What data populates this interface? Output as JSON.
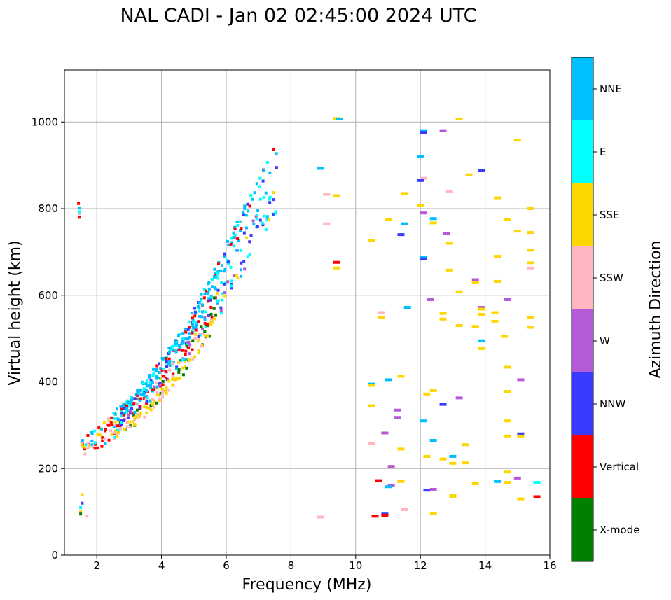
{
  "chart_data": {
    "type": "scatter",
    "title": "NAL CADI - Jan 02 02:45:00 2024 UTC",
    "xlabel": "Frequency (MHz)",
    "ylabel": "Virtual height (km)",
    "xlim": [
      1,
      16
    ],
    "ylim": [
      0,
      1120
    ],
    "x_ticks": [
      2,
      4,
      6,
      8,
      10,
      12,
      14,
      16
    ],
    "y_ticks": [
      0,
      200,
      400,
      600,
      800,
      1000
    ],
    "grid": true,
    "colorbar": {
      "label": "Azimuth Direction",
      "categories": [
        {
          "name": "X-mode",
          "color": "#008000"
        },
        {
          "name": "Vertical",
          "color": "#ff0000"
        },
        {
          "name": "NNW",
          "color": "#3a3aff"
        },
        {
          "name": "W",
          "color": "#b55ad6"
        },
        {
          "name": "SSW",
          "color": "#ffb6c1"
        },
        {
          "name": "SSE",
          "color": "#ffd700"
        },
        {
          "name": "E",
          "color": "#00ffff"
        },
        {
          "name": "NNE",
          "color": "#00bfff"
        }
      ]
    },
    "trace_nodes": [
      {
        "f": 1.5,
        "h": 235
      },
      {
        "f": 2.0,
        "h": 255
      },
      {
        "f": 2.5,
        "h": 275
      },
      {
        "f": 3.0,
        "h": 300
      },
      {
        "f": 3.5,
        "h": 330
      },
      {
        "f": 4.0,
        "h": 370
      },
      {
        "f": 4.5,
        "h": 410
      },
      {
        "f": 5.0,
        "h": 460
      },
      {
        "f": 5.5,
        "h": 520
      },
      {
        "f": 6.0,
        "h": 590
      },
      {
        "f": 6.5,
        "h": 660
      },
      {
        "f": 7.0,
        "h": 730
      },
      {
        "f": 7.5,
        "h": 790
      }
    ],
    "points": [
      {
        "f": 1.5,
        "h": 100,
        "c": "SSE"
      },
      {
        "f": 1.5,
        "h": 110,
        "c": "E"
      },
      {
        "f": 1.55,
        "h": 140,
        "c": "SSE"
      },
      {
        "f": 1.55,
        "h": 120,
        "c": "NNW"
      },
      {
        "f": 1.5,
        "h": 95,
        "c": "X-mode"
      },
      {
        "f": 1.7,
        "h": 90,
        "c": "SSW"
      },
      {
        "f": 9.4,
        "h": 1008,
        "c": "SSE"
      },
      {
        "f": 9.5,
        "h": 1007,
        "c": "NNE"
      },
      {
        "f": 8.9,
        "h": 893,
        "c": "NNE"
      },
      {
        "f": 9.1,
        "h": 833,
        "c": "SSW"
      },
      {
        "f": 9.4,
        "h": 830,
        "c": "SSE"
      },
      {
        "f": 9.1,
        "h": 765,
        "c": "SSW"
      },
      {
        "f": 9.4,
        "h": 676,
        "c": "Vertical"
      },
      {
        "f": 9.4,
        "h": 663,
        "c": "SSE"
      },
      {
        "f": 8.9,
        "h": 88,
        "c": "SSW"
      },
      {
        "f": 12.1,
        "h": 980,
        "c": "NNE"
      },
      {
        "f": 12.1,
        "h": 976,
        "c": "NNW"
      },
      {
        "f": 12.7,
        "h": 980,
        "c": "W"
      },
      {
        "f": 13.2,
        "h": 1007,
        "c": "SSE"
      },
      {
        "f": 12.0,
        "h": 920,
        "c": "NNE"
      },
      {
        "f": 12.1,
        "h": 870,
        "c": "SSW"
      },
      {
        "f": 12.0,
        "h": 865,
        "c": "NNW"
      },
      {
        "f": 12.9,
        "h": 840,
        "c": "SSW"
      },
      {
        "f": 13.5,
        "h": 878,
        "c": "SSE"
      },
      {
        "f": 13.9,
        "h": 888,
        "c": "NNW"
      },
      {
        "f": 15.0,
        "h": 958,
        "c": "SSE"
      },
      {
        "f": 14.4,
        "h": 825,
        "c": "SSE"
      },
      {
        "f": 11.5,
        "h": 835,
        "c": "SSE"
      },
      {
        "f": 12.0,
        "h": 808,
        "c": "SSE"
      },
      {
        "f": 12.1,
        "h": 790,
        "c": "W"
      },
      {
        "f": 12.4,
        "h": 777,
        "c": "NNE"
      },
      {
        "f": 12.4,
        "h": 767,
        "c": "SSE"
      },
      {
        "f": 11.0,
        "h": 775,
        "c": "SSE"
      },
      {
        "f": 11.5,
        "h": 765,
        "c": "NNE"
      },
      {
        "f": 11.4,
        "h": 740,
        "c": "NNW"
      },
      {
        "f": 12.8,
        "h": 743,
        "c": "W"
      },
      {
        "f": 10.5,
        "h": 727,
        "c": "SSE"
      },
      {
        "f": 12.9,
        "h": 720,
        "c": "SSE"
      },
      {
        "f": 14.7,
        "h": 775,
        "c": "SSE"
      },
      {
        "f": 15.0,
        "h": 748,
        "c": "SSE"
      },
      {
        "f": 15.4,
        "h": 800,
        "c": "SSE"
      },
      {
        "f": 15.4,
        "h": 745,
        "c": "SSE"
      },
      {
        "f": 15.4,
        "h": 704,
        "c": "SSE"
      },
      {
        "f": 15.4,
        "h": 675,
        "c": "SSE"
      },
      {
        "f": 15.4,
        "h": 663,
        "c": "SSW"
      },
      {
        "f": 12.1,
        "h": 688,
        "c": "NNE"
      },
      {
        "f": 12.1,
        "h": 684,
        "c": "NNW"
      },
      {
        "f": 14.4,
        "h": 690,
        "c": "SSE"
      },
      {
        "f": 12.9,
        "h": 658,
        "c": "SSE"
      },
      {
        "f": 13.7,
        "h": 636,
        "c": "W"
      },
      {
        "f": 13.7,
        "h": 630,
        "c": "SSE"
      },
      {
        "f": 14.4,
        "h": 632,
        "c": "SSE"
      },
      {
        "f": 13.2,
        "h": 608,
        "c": "SSE"
      },
      {
        "f": 12.3,
        "h": 590,
        "c": "W"
      },
      {
        "f": 14.7,
        "h": 590,
        "c": "W"
      },
      {
        "f": 11.6,
        "h": 572,
        "c": "NNE"
      },
      {
        "f": 13.9,
        "h": 572,
        "c": "W"
      },
      {
        "f": 13.9,
        "h": 568,
        "c": "SSE"
      },
      {
        "f": 12.7,
        "h": 558,
        "c": "SSE"
      },
      {
        "f": 12.7,
        "h": 545,
        "c": "SSE"
      },
      {
        "f": 10.8,
        "h": 560,
        "c": "SSW"
      },
      {
        "f": 10.8,
        "h": 548,
        "c": "SSE"
      },
      {
        "f": 13.9,
        "h": 556,
        "c": "SSE"
      },
      {
        "f": 14.3,
        "h": 560,
        "c": "SSE"
      },
      {
        "f": 14.3,
        "h": 540,
        "c": "SSE"
      },
      {
        "f": 13.2,
        "h": 530,
        "c": "SSE"
      },
      {
        "f": 13.7,
        "h": 528,
        "c": "SSE"
      },
      {
        "f": 15.4,
        "h": 548,
        "c": "SSE"
      },
      {
        "f": 15.4,
        "h": 526,
        "c": "SSE"
      },
      {
        "f": 14.6,
        "h": 505,
        "c": "SSE"
      },
      {
        "f": 13.9,
        "h": 495,
        "c": "NNE"
      },
      {
        "f": 13.9,
        "h": 477,
        "c": "SSE"
      },
      {
        "f": 14.7,
        "h": 434,
        "c": "SSE"
      },
      {
        "f": 11.4,
        "h": 413,
        "c": "SSE"
      },
      {
        "f": 10.5,
        "h": 395,
        "c": "NNE"
      },
      {
        "f": 10.5,
        "h": 392,
        "c": "SSE"
      },
      {
        "f": 11.0,
        "h": 405,
        "c": "NNE"
      },
      {
        "f": 15.1,
        "h": 405,
        "c": "W"
      },
      {
        "f": 12.4,
        "h": 380,
        "c": "SSE"
      },
      {
        "f": 12.2,
        "h": 372,
        "c": "SSE"
      },
      {
        "f": 14.7,
        "h": 378,
        "c": "SSE"
      },
      {
        "f": 13.2,
        "h": 363,
        "c": "W"
      },
      {
        "f": 12.7,
        "h": 348,
        "c": "NNW"
      },
      {
        "f": 10.5,
        "h": 345,
        "c": "SSE"
      },
      {
        "f": 11.3,
        "h": 335,
        "c": "W"
      },
      {
        "f": 11.3,
        "h": 318,
        "c": "W"
      },
      {
        "f": 12.1,
        "h": 310,
        "c": "NNE"
      },
      {
        "f": 14.7,
        "h": 310,
        "c": "SSE"
      },
      {
        "f": 10.9,
        "h": 282,
        "c": "W"
      },
      {
        "f": 15.1,
        "h": 280,
        "c": "NNW"
      },
      {
        "f": 15.1,
        "h": 275,
        "c": "SSE"
      },
      {
        "f": 14.7,
        "h": 275,
        "c": "SSE"
      },
      {
        "f": 12.4,
        "h": 265,
        "c": "NNE"
      },
      {
        "f": 10.5,
        "h": 258,
        "c": "SSW"
      },
      {
        "f": 13.4,
        "h": 255,
        "c": "SSE"
      },
      {
        "f": 11.4,
        "h": 245,
        "c": "SSE"
      },
      {
        "f": 12.2,
        "h": 228,
        "c": "SSE"
      },
      {
        "f": 13.0,
        "h": 228,
        "c": "NNE"
      },
      {
        "f": 12.7,
        "h": 222,
        "c": "SSE"
      },
      {
        "f": 13.0,
        "h": 212,
        "c": "SSE"
      },
      {
        "f": 13.4,
        "h": 213,
        "c": "SSE"
      },
      {
        "f": 11.1,
        "h": 205,
        "c": "W"
      },
      {
        "f": 14.7,
        "h": 192,
        "c": "SSE"
      },
      {
        "f": 13.7,
        "h": 165,
        "c": "SSE"
      },
      {
        "f": 14.4,
        "h": 170,
        "c": "NNE"
      },
      {
        "f": 14.7,
        "h": 168,
        "c": "SSE"
      },
      {
        "f": 15.0,
        "h": 178,
        "c": "W"
      },
      {
        "f": 15.6,
        "h": 168,
        "c": "E"
      },
      {
        "f": 10.7,
        "h": 172,
        "c": "Vertical"
      },
      {
        "f": 11.1,
        "h": 160,
        "c": "W"
      },
      {
        "f": 11.0,
        "h": 158,
        "c": "NNE"
      },
      {
        "f": 11.4,
        "h": 170,
        "c": "SSE"
      },
      {
        "f": 12.2,
        "h": 150,
        "c": "NNW"
      },
      {
        "f": 12.4,
        "h": 152,
        "c": "W"
      },
      {
        "f": 13.0,
        "h": 138,
        "c": "SSE"
      },
      {
        "f": 13.0,
        "h": 135,
        "c": "SSE"
      },
      {
        "f": 15.1,
        "h": 130,
        "c": "SSE"
      },
      {
        "f": 15.6,
        "h": 135,
        "c": "Vertical"
      },
      {
        "f": 11.5,
        "h": 105,
        "c": "SSW"
      },
      {
        "f": 12.4,
        "h": 96,
        "c": "SSE"
      },
      {
        "f": 10.6,
        "h": 90,
        "c": "Vertical"
      },
      {
        "f": 10.9,
        "h": 95,
        "c": "NNW"
      },
      {
        "f": 10.9,
        "h": 92,
        "c": "Vertical"
      }
    ]
  }
}
